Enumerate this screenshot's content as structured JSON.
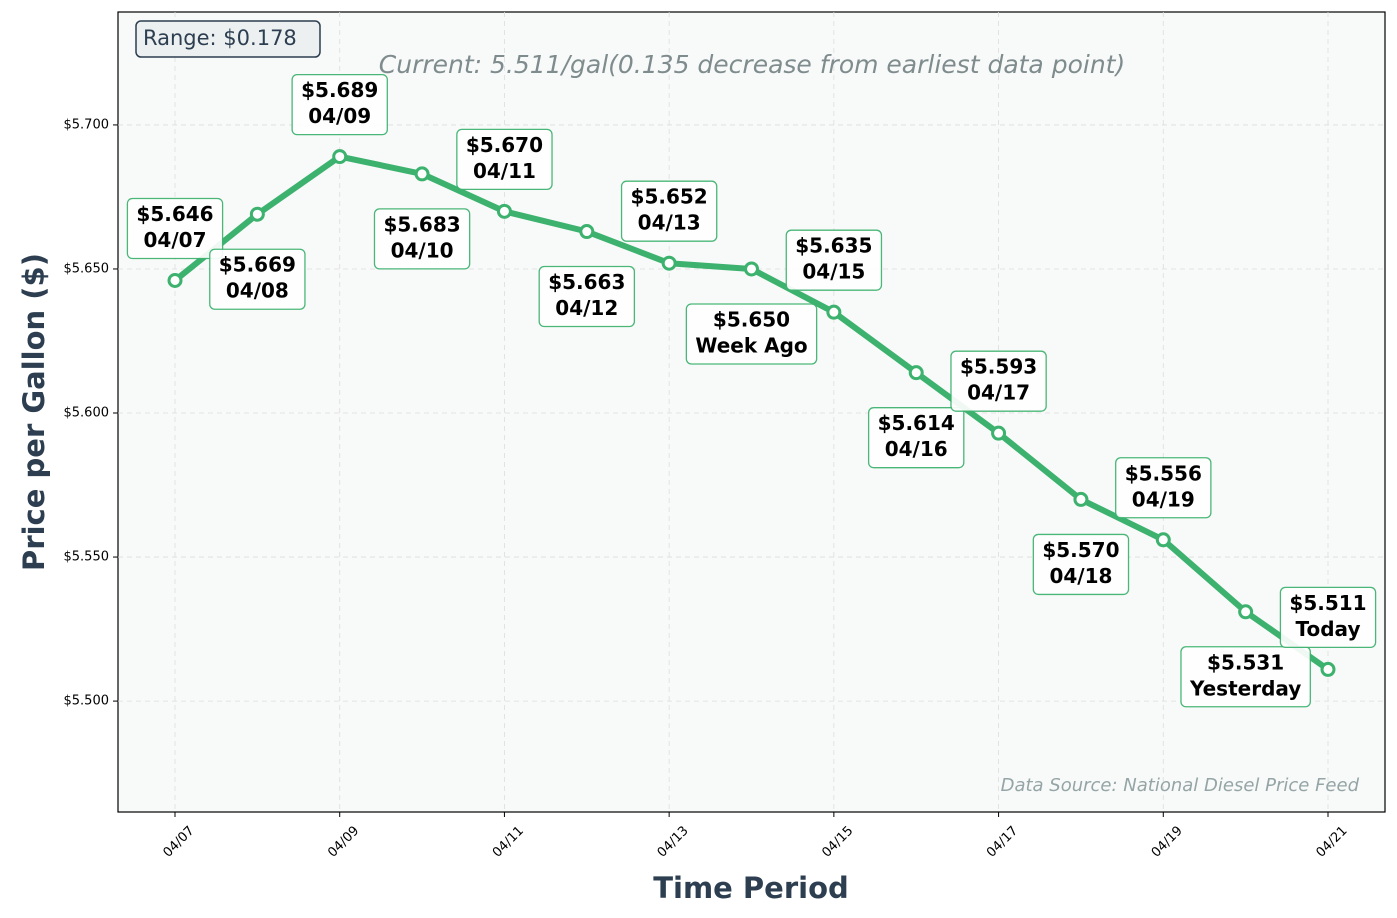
{
  "chart_data": {
    "type": "line",
    "title": "Current: 5.511/gal(0.135 decrease from earliest data point)",
    "range_label": "Range: $0.178",
    "source": "Data Source: National Diesel Price Feed",
    "x_label": "Time Period",
    "y_label": "Price per Gallon ($)",
    "categories": [
      "04/07",
      null,
      "04/09",
      null,
      "04/11",
      null,
      "04/13",
      null,
      "04/15",
      null,
      "04/17",
      null,
      "04/19",
      null,
      "04/21"
    ],
    "values": [
      5.646,
      5.669,
      5.689,
      5.683,
      5.67,
      5.663,
      5.652,
      5.65,
      5.635,
      5.614,
      5.593,
      5.57,
      5.556,
      5.531,
      5.511
    ],
    "value_labels": [
      "$5.646",
      "$5.669",
      "$5.689",
      "$5.683",
      "$5.670",
      "$5.663",
      "$5.652",
      "$5.650",
      "$5.635",
      "$5.614",
      "$5.593",
      "$5.570",
      "$5.556",
      "$5.531",
      "$5.511"
    ],
    "point_labels": [
      "04/07",
      "04/08",
      "04/09",
      "04/10",
      "04/11",
      "04/12",
      "04/13",
      "Week Ago",
      "04/15",
      "04/16",
      "04/17",
      "04/18",
      "04/19",
      "Yesterday",
      "Today"
    ],
    "color": "#3cb26e",
    "ylim": [
      5.4615,
      5.7392
    ],
    "yticks": [
      {
        "value": 5.5,
        "label": "$5.500"
      },
      {
        "value": 5.55,
        "label": "$5.550"
      },
      {
        "value": 5.6,
        "label": "$5.600"
      },
      {
        "value": 5.65,
        "label": "$5.650"
      },
      {
        "value": 5.7,
        "label": "$5.700"
      }
    ],
    "grid": true
  }
}
